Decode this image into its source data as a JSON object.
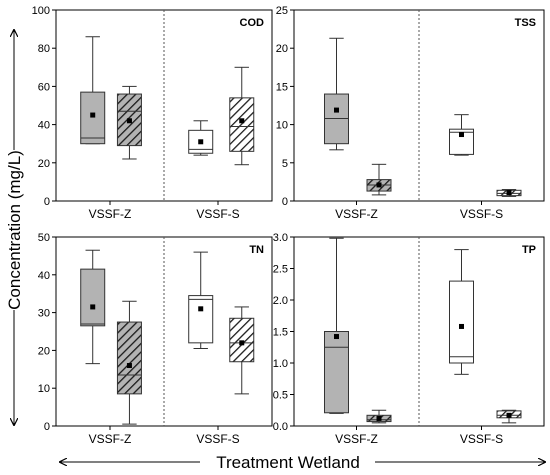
{
  "figure": {
    "ylabel": "Concentration (mg/L)",
    "xlabel": "Treatment Wetland"
  },
  "colors": {
    "vssf_z_fill": "#b3b3b3",
    "vssf_z_hatch": "#1a1a1a",
    "vssf_s_fill": "#ffffff",
    "line": "#333333",
    "mean_marker": "#000000"
  },
  "chart_data": [
    {
      "type": "box",
      "title": "COD",
      "ylim": [
        0,
        100
      ],
      "yticks": [
        0,
        20,
        40,
        60,
        80,
        100
      ],
      "categories": [
        "VSSF-Z",
        "VSSF-S"
      ],
      "series": [
        {
          "category": "VSSF-Z",
          "style": "grey",
          "whisker_low": 30,
          "q1": 30,
          "median": 33,
          "q3": 57,
          "whisker_high": 86,
          "mean": 45
        },
        {
          "category": "VSSF-Z",
          "style": "hatched",
          "whisker_low": 22,
          "q1": 29,
          "median": 47,
          "q3": 56,
          "whisker_high": 60,
          "mean": 42
        },
        {
          "category": "VSSF-S",
          "style": "white",
          "whisker_low": 24,
          "q1": 25,
          "median": 27,
          "q3": 37,
          "whisker_high": 42,
          "mean": 31
        },
        {
          "category": "VSSF-S",
          "style": "hatched-white",
          "whisker_low": 19,
          "q1": 26,
          "median": 39,
          "q3": 54,
          "whisker_high": 70,
          "mean": 42
        }
      ]
    },
    {
      "type": "box",
      "title": "TSS",
      "ylim": [
        0,
        25
      ],
      "yticks": [
        0,
        5,
        10,
        15,
        20,
        25
      ],
      "categories": [
        "VSSF-Z",
        "VSSF-S"
      ],
      "series": [
        {
          "category": "VSSF-Z",
          "style": "grey",
          "whisker_low": 6.7,
          "q1": 7.5,
          "median": 10.8,
          "q3": 14.0,
          "whisker_high": 21.3,
          "mean": 11.9
        },
        {
          "category": "VSSF-Z",
          "style": "hatched",
          "whisker_low": 0.8,
          "q1": 1.3,
          "median": 2.1,
          "q3": 2.8,
          "whisker_high": 4.8,
          "mean": 2.1
        },
        {
          "category": "VSSF-S",
          "style": "white",
          "whisker_low": 6.0,
          "q1": 6.1,
          "median": 9.0,
          "q3": 9.4,
          "whisker_high": 11.3,
          "mean": 8.7
        },
        {
          "category": "VSSF-S",
          "style": "hatched-white",
          "whisker_low": 0.6,
          "q1": 0.7,
          "median": 1.0,
          "q3": 1.4,
          "whisker_high": 1.5,
          "mean": 1.1
        }
      ]
    },
    {
      "type": "box",
      "title": "TN",
      "ylim": [
        0,
        50
      ],
      "yticks": [
        0,
        10,
        20,
        30,
        40,
        50
      ],
      "categories": [
        "VSSF-Z",
        "VSSF-S"
      ],
      "series": [
        {
          "category": "VSSF-Z",
          "style": "grey",
          "whisker_low": 16.5,
          "q1": 26.5,
          "median": 27.0,
          "q3": 41.5,
          "whisker_high": 46.5,
          "mean": 31.5
        },
        {
          "category": "VSSF-Z",
          "style": "hatched",
          "whisker_low": 0.5,
          "q1": 8.5,
          "median": 13.5,
          "q3": 27.5,
          "whisker_high": 33.0,
          "mean": 16.0
        },
        {
          "category": "VSSF-S",
          "style": "white",
          "whisker_low": 20.5,
          "q1": 22.0,
          "median": 33.5,
          "q3": 34.5,
          "whisker_high": 46.0,
          "mean": 31.0
        },
        {
          "category": "VSSF-S",
          "style": "hatched-white",
          "whisker_low": 8.5,
          "q1": 17.0,
          "median": 22.0,
          "q3": 28.5,
          "whisker_high": 31.5,
          "mean": 22.0
        }
      ]
    },
    {
      "type": "box",
      "title": "TP",
      "ylim": [
        0,
        3.0
      ],
      "yticks": [
        0,
        0.5,
        1.0,
        1.5,
        2.0,
        2.5,
        3.0
      ],
      "categories": [
        "VSSF-Z",
        "VSSF-S"
      ],
      "series": [
        {
          "category": "VSSF-Z",
          "style": "grey",
          "whisker_low": 0.2,
          "q1": 0.21,
          "median": 1.25,
          "q3": 1.5,
          "whisker_high": 2.98,
          "mean": 1.42
        },
        {
          "category": "VSSF-Z",
          "style": "hatched",
          "whisker_low": 0.05,
          "q1": 0.07,
          "median": 0.1,
          "q3": 0.17,
          "whisker_high": 0.25,
          "mean": 0.12
        },
        {
          "category": "VSSF-S",
          "style": "white",
          "whisker_low": 0.82,
          "q1": 1.0,
          "median": 1.1,
          "q3": 2.3,
          "whisker_high": 2.8,
          "mean": 1.58
        },
        {
          "category": "VSSF-S",
          "style": "hatched-white",
          "whisker_low": 0.05,
          "q1": 0.13,
          "median": 0.17,
          "q3": 0.24,
          "whisker_high": 0.25,
          "mean": 0.17
        }
      ]
    }
  ]
}
